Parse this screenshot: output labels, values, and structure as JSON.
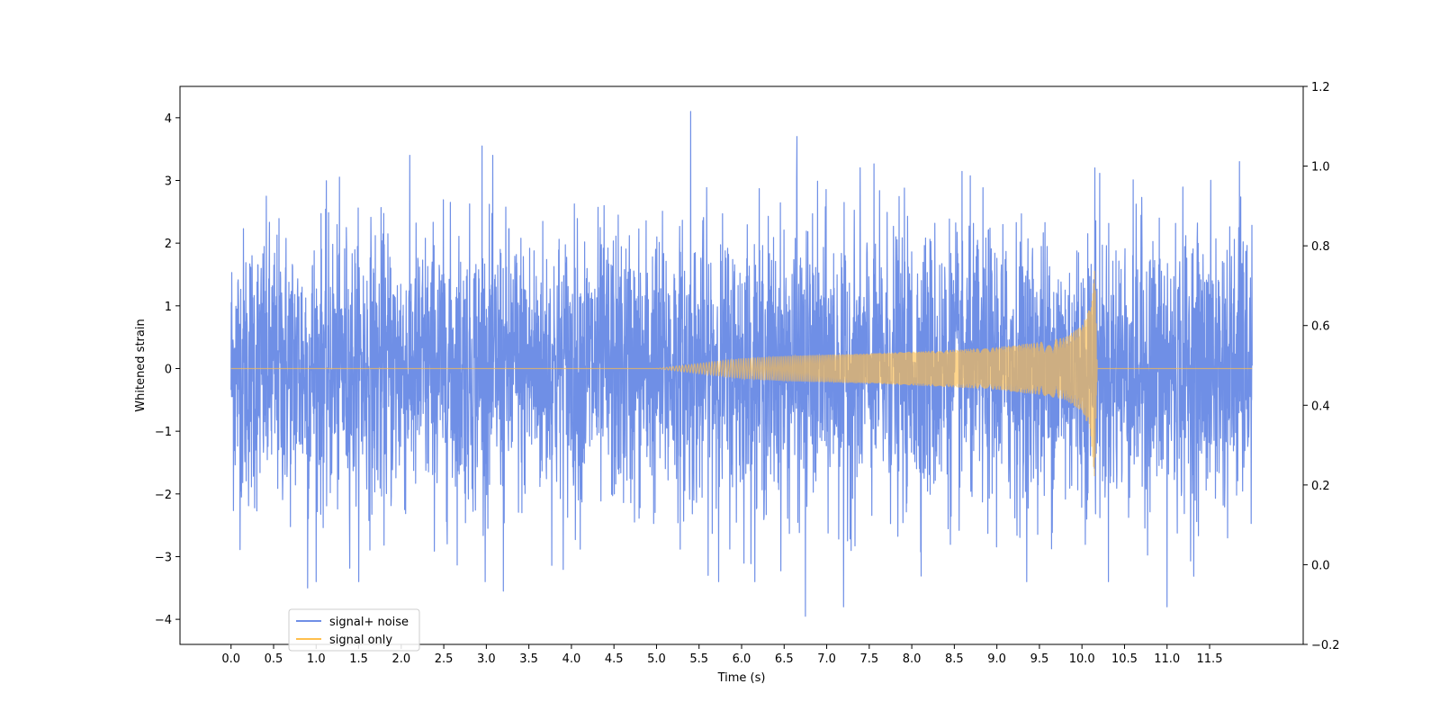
{
  "chart_data": {
    "type": "line",
    "xlabel": "Time (s)",
    "ylabel": "Whitened strain",
    "xlim": [
      -0.6,
      12.6
    ],
    "ylim": [
      -4.4,
      4.5
    ],
    "ylim_right": [
      -0.2,
      1.2
    ],
    "x_ticks": [
      "0.0",
      "0.5",
      "1.0",
      "1.5",
      "2.0",
      "2.5",
      "3.0",
      "3.5",
      "4.0",
      "4.5",
      "5.0",
      "5.5",
      "6.0",
      "6.5",
      "7.0",
      "7.5",
      "8.0",
      "8.5",
      "9.0",
      "9.5",
      "10.0",
      "10.5",
      "11.0",
      "11.5"
    ],
    "y_ticks": [
      "−4",
      "−3",
      "−2",
      "−1",
      "0",
      "1",
      "2",
      "3",
      "4"
    ],
    "y_right_ticks": [
      "−0.2",
      "0.0",
      "0.2",
      "0.4",
      "0.6",
      "0.8",
      "1.0",
      "1.2"
    ],
    "grid": false,
    "legend_position": "lower-left",
    "series": [
      {
        "name": "signal+ noise",
        "color": "#6f8fe6",
        "description": "white noise centered at 0, typical range about ±2.5, spikes up to about +4.1 and down to about -3.9, spanning t = 0 to 12 s",
        "x_range": [
          0.0,
          12.0
        ],
        "noise_sigma": 1.1,
        "peaks": [
          {
            "x": 5.4,
            "y": 4.1
          },
          {
            "x": 2.95,
            "y": 3.55
          },
          {
            "x": 6.65,
            "y": 3.7
          },
          {
            "x": 6.75,
            "y": -3.95
          },
          {
            "x": 7.2,
            "y": -3.8
          },
          {
            "x": 11.0,
            "y": -3.8
          },
          {
            "x": 3.2,
            "y": -3.55
          },
          {
            "x": 0.9,
            "y": -3.5
          },
          {
            "x": 10.15,
            "y": 3.2
          },
          {
            "x": 11.85,
            "y": 3.3
          }
        ]
      },
      {
        "name": "signal only",
        "color": "#ffbf4d",
        "description": "chirp signal: zero until about 5.0 s, amplitude grows slowly then rapidly to about ±1.8, merger near 10.15 s, then ringdown to zero",
        "x": [
          0.0,
          5.0,
          5.5,
          6.0,
          6.5,
          7.0,
          7.5,
          8.0,
          8.5,
          9.0,
          9.5,
          9.8,
          10.0,
          10.1,
          10.15,
          10.18,
          12.0
        ],
        "envelope": [
          0.0,
          0.0,
          0.08,
          0.16,
          0.2,
          0.22,
          0.24,
          0.27,
          0.3,
          0.34,
          0.42,
          0.5,
          0.68,
          1.0,
          1.8,
          0.0,
          0.0
        ]
      }
    ]
  }
}
